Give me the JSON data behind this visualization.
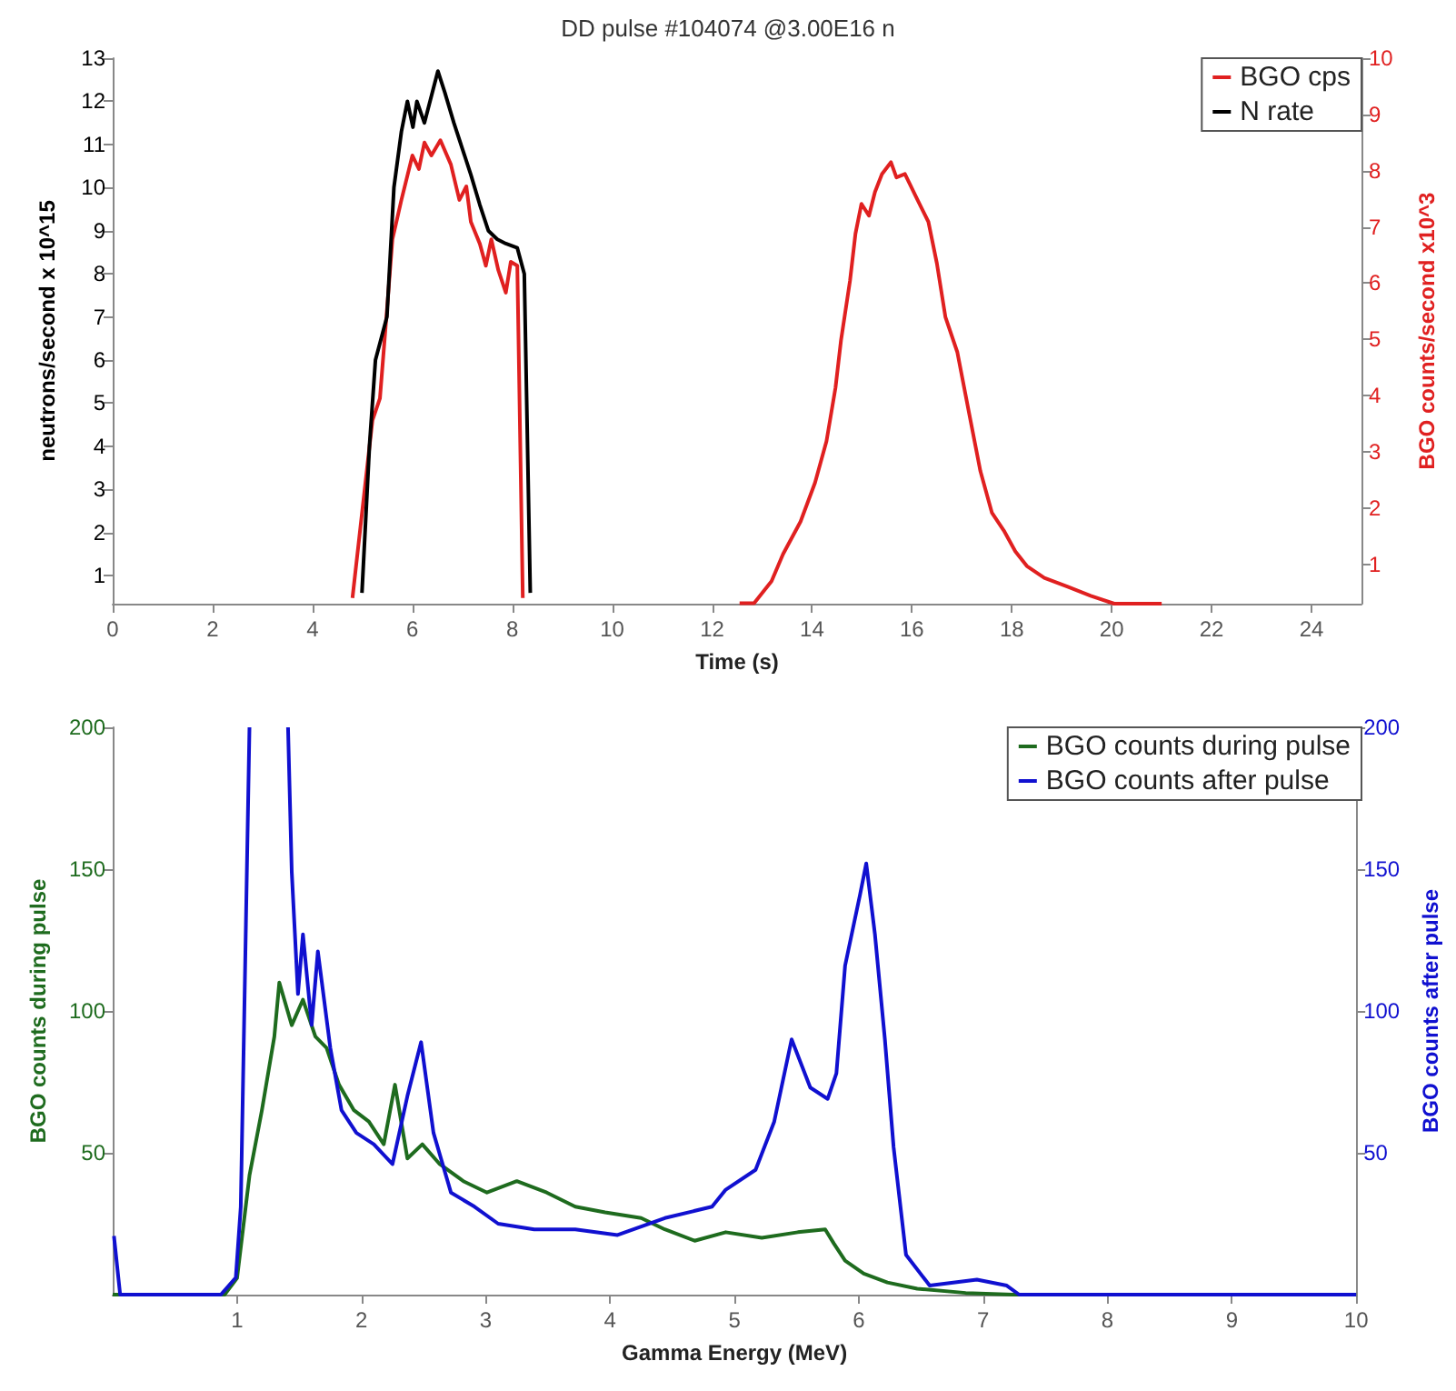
{
  "chart_data": [
    {
      "type": "line",
      "title": "DD pulse #104074 @3.00E16 n",
      "xlabel": "Time (s)",
      "ylabel": "neutrons/second x 10^15",
      "y2label": "BGO counts/second x10^3",
      "xlim": [
        0,
        25
      ],
      "xticks": [
        0,
        2,
        4,
        6,
        8,
        10,
        12,
        14,
        16,
        18,
        20,
        22,
        24
      ],
      "ylim": [
        0.35,
        13
      ],
      "yticks": [
        1,
        2,
        3,
        4,
        5,
        6,
        7,
        8,
        9,
        10,
        11,
        12,
        13
      ],
      "y2lim": [
        0.3,
        10
      ],
      "y2ticks": [
        1,
        2,
        3,
        4,
        5,
        6,
        7,
        8,
        9,
        10
      ],
      "legend": "top right",
      "marker": "none",
      "series": [
        {
          "name": "BGO cps",
          "color": "#e02020",
          "axis": "y2",
          "x": [
            4.8,
            5.2,
            5.35,
            5.49,
            5.6,
            5.78,
            6.0,
            6.13,
            6.24,
            6.38,
            6.56,
            6.77,
            6.94,
            7.08,
            7.17,
            7.35,
            7.47,
            7.58,
            7.72,
            7.87,
            7.97,
            8.1,
            8.21
          ],
          "values": [
            0.4,
            3.56,
            3.95,
            5.52,
            6.78,
            7.48,
            8.27,
            8.03,
            8.5,
            8.27,
            8.54,
            8.11,
            7.48,
            7.72,
            7.09,
            6.7,
            6.31,
            6.78,
            6.23,
            5.83,
            6.38,
            6.31,
            0.4
          ]
        },
        {
          "color": "#e02020",
          "axis": "y2",
          "x": [
            12.55,
            12.84,
            13.19,
            13.42,
            13.77,
            14.06,
            14.29,
            14.47,
            14.58,
            14.76,
            14.87,
            14.99,
            15.14,
            15.26,
            15.4,
            15.58,
            15.69,
            15.86,
            16.09,
            16.33,
            16.5,
            16.67,
            16.91,
            17.14,
            17.37,
            17.6,
            17.84,
            18.07,
            18.3,
            18.65,
            19.12,
            19.58,
            20.05,
            21
          ],
          "values": [
            0.31,
            0.31,
            0.7,
            1.18,
            1.76,
            2.45,
            3.19,
            4.14,
            4.98,
            6.04,
            6.88,
            7.41,
            7.2,
            7.62,
            7.94,
            8.15,
            7.88,
            7.94,
            7.52,
            7.09,
            6.35,
            5.4,
            4.77,
            3.71,
            2.66,
            1.92,
            1.6,
            1.23,
            0.97,
            0.76,
            0.6,
            0.44,
            0.3,
            0.3
          ]
        },
        {
          "name": "N rate",
          "color": "#000000",
          "axis": "y",
          "x": [
            4.99,
            5.14,
            5.26,
            5.49,
            5.63,
            5.78,
            5.9,
            6.01,
            6.09,
            6.24,
            6.42,
            6.51,
            6.65,
            6.83,
            7.0,
            7.17,
            7.35,
            7.52,
            7.7,
            7.87,
            8.1,
            8.24,
            8.36
          ],
          "values": [
            0.6,
            4,
            6,
            7,
            10,
            11.3,
            12,
            11.4,
            12,
            11.5,
            12.3,
            12.7,
            12.2,
            11.5,
            10.9,
            10.3,
            9.6,
            9,
            8.8,
            8.7,
            8.6,
            8,
            0.6
          ]
        }
      ]
    },
    {
      "type": "line",
      "xlabel": "Gamma Energy (MeV)",
      "ylabel": "BGO counts during pulse",
      "y2label": "BGO counts after pulse",
      "xlim": [
        0,
        10
      ],
      "xticks": [
        1,
        2,
        3,
        4,
        5,
        6,
        7,
        8,
        9,
        10
      ],
      "ylim": [
        0,
        200
      ],
      "yticks": [
        50,
        100,
        150,
        200
      ],
      "y2lim": [
        0,
        200
      ],
      "y2ticks": [
        50,
        100,
        150,
        200
      ],
      "legend": "top right",
      "marker": "none",
      "series": [
        {
          "name": "BGO counts during pulse",
          "color": "#1e6b1e",
          "axis": "y",
          "x": [
            0,
            0.9,
            1.0,
            1.1,
            1.2,
            1.3,
            1.34,
            1.44,
            1.53,
            1.63,
            1.72,
            1.82,
            1.94,
            2.06,
            2.18,
            2.27,
            2.37,
            2.49,
            2.63,
            2.82,
            3.01,
            3.25,
            3.49,
            3.72,
            3.96,
            4.25,
            4.44,
            4.68,
            4.93,
            5.22,
            5.51,
            5.73,
            5.8,
            5.89,
            6.04,
            6.23,
            6.47,
            6.86,
            7.24,
            10
          ],
          "values": [
            0,
            0,
            5.8,
            42,
            65,
            91,
            110,
            95,
            104,
            91,
            87,
            74,
            65,
            61,
            53,
            74,
            48,
            53,
            46,
            40,
            36,
            40,
            36,
            31,
            29,
            27,
            23,
            19,
            22,
            20,
            22,
            23,
            18,
            12,
            7.4,
            4.3,
            2.1,
            0.6,
            0,
            0
          ]
        },
        {
          "name": "BGO counts after pulse",
          "color": "#1010d0",
          "axis": "y2",
          "x": [
            0.01,
            0.06,
            0.87,
            0.99,
            1.03,
            1.1,
            1.25,
            1.41,
            1.44,
            1.49,
            1.53,
            1.6,
            1.65,
            1.75,
            1.84,
            1.96,
            2.1,
            2.25,
            2.37,
            2.48,
            2.58,
            2.72,
            2.91,
            3.1,
            3.39,
            3.72,
            4.06,
            4.44,
            4.82,
            4.93,
            5.17,
            5.32,
            5.46,
            5.61,
            5.75,
            5.82,
            5.89,
            6.01,
            6.06,
            6.13,
            6.21,
            6.28,
            6.38,
            6.57,
            6.95,
            7.19,
            7.29,
            10
          ],
          "values": [
            20.7,
            0,
            0,
            6,
            31,
            200,
            null,
            200,
            149,
            106,
            127,
            95,
            121,
            87,
            65,
            57,
            53,
            46,
            70,
            89,
            57,
            36,
            31,
            25,
            23,
            23,
            21,
            27,
            31,
            37,
            44,
            61,
            90,
            73,
            69,
            78,
            116,
            141,
            152,
            127,
            90,
            52,
            14,
            3.2,
            5.3,
            3.2,
            0,
            0
          ]
        }
      ]
    }
  ]
}
